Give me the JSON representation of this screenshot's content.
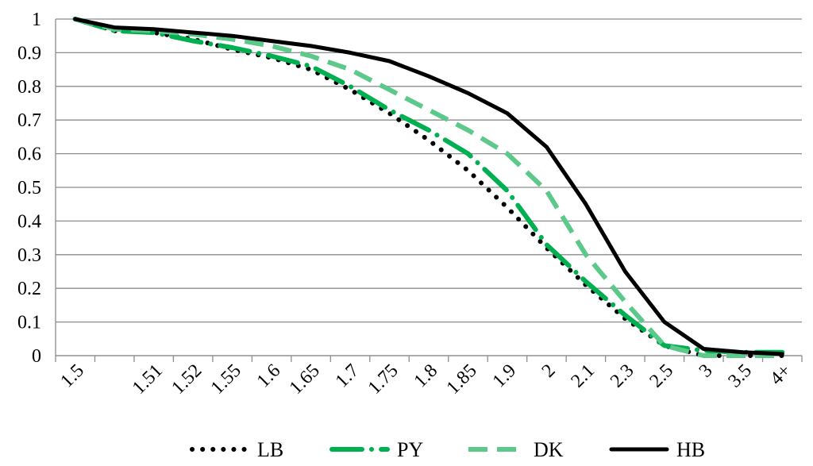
{
  "chart_data": {
    "type": "line",
    "title": "",
    "xlabel": "",
    "ylabel": "",
    "ylim": [
      0,
      1
    ],
    "yticks": [
      "0",
      "0.1",
      "0.2",
      "0.3",
      "0.4",
      "0.5",
      "0.6",
      "0.7",
      "0.8",
      "0.9",
      "1"
    ],
    "categories": [
      "1.5",
      "",
      "1.51",
      "1.52",
      "1.55",
      "1.6",
      "1.65",
      "1.7",
      "1.75",
      "1.8",
      "1.85",
      "1.9",
      "2",
      "2.1",
      "2.3",
      "2.5",
      "3",
      "3.5",
      "4+"
    ],
    "grid": true,
    "legend_position": "bottom",
    "series": [
      {
        "name": "LB",
        "color": "#000000",
        "style": "dotted",
        "values": [
          1.0,
          0.965,
          0.96,
          0.94,
          0.91,
          0.885,
          0.85,
          0.79,
          0.72,
          0.64,
          0.55,
          0.44,
          0.32,
          0.21,
          0.11,
          0.03,
          0.0,
          0.0,
          0.0
        ]
      },
      {
        "name": "PY",
        "color": "#00b050",
        "style": "long-dash-dot",
        "values": [
          1.0,
          0.965,
          0.96,
          0.935,
          0.915,
          0.89,
          0.86,
          0.8,
          0.73,
          0.67,
          0.6,
          0.49,
          0.33,
          0.22,
          0.12,
          0.03,
          0.015,
          0.01,
          0.01
        ]
      },
      {
        "name": "DK",
        "color": "#5cc98a",
        "style": "dashed",
        "values": [
          1.0,
          0.97,
          0.965,
          0.955,
          0.94,
          0.92,
          0.89,
          0.85,
          0.79,
          0.73,
          0.67,
          0.6,
          0.49,
          0.3,
          0.16,
          0.03,
          0.0,
          0.0,
          0.0
        ]
      },
      {
        "name": "HB",
        "color": "#000000",
        "style": "solid",
        "values": [
          1.0,
          0.975,
          0.97,
          0.96,
          0.95,
          0.935,
          0.92,
          0.9,
          0.875,
          0.83,
          0.78,
          0.72,
          0.62,
          0.45,
          0.25,
          0.1,
          0.02,
          0.01,
          0.005
        ]
      }
    ]
  }
}
